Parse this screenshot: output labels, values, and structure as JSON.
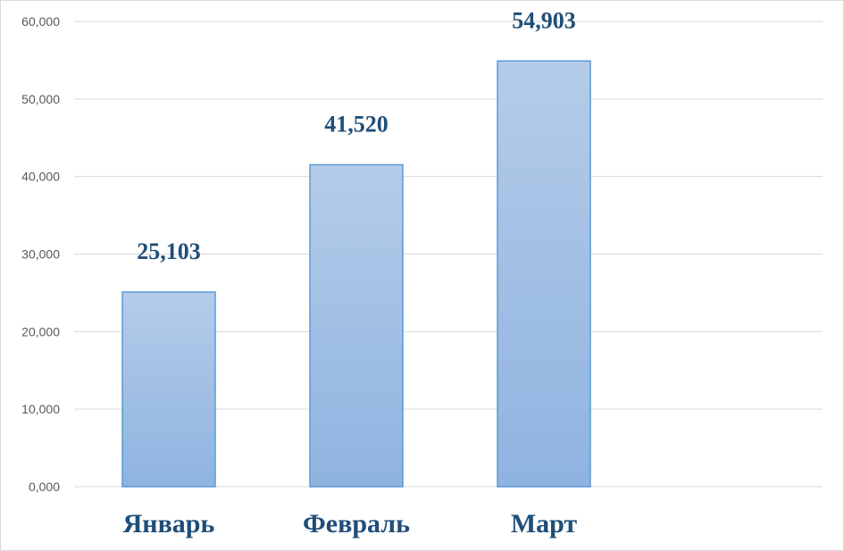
{
  "chart_data": {
    "type": "bar",
    "categories": [
      "Январь",
      "Февраль",
      "Март"
    ],
    "values": [
      25103,
      41520,
      54903
    ],
    "data_labels": [
      "25,103",
      "41,520",
      "54,903"
    ],
    "ylim": [
      0,
      60000
    ],
    "yticks": [
      0,
      10000,
      20000,
      30000,
      40000,
      50000,
      60000
    ],
    "ytick_labels": [
      "0,000",
      "10,000",
      "20,000",
      "30,000",
      "40,000",
      "50,000",
      "60,000"
    ],
    "title": "",
    "xlabel": "",
    "ylabel": "",
    "grid": true,
    "legend": "none",
    "colors": {
      "bar_top": "#b4cce9",
      "bar_bottom": "#8fb3e0",
      "bar_border": "#5b9bd5",
      "label_text": "#1f4e79",
      "tick_text": "#595959",
      "gridline": "#d9d9d9"
    }
  }
}
